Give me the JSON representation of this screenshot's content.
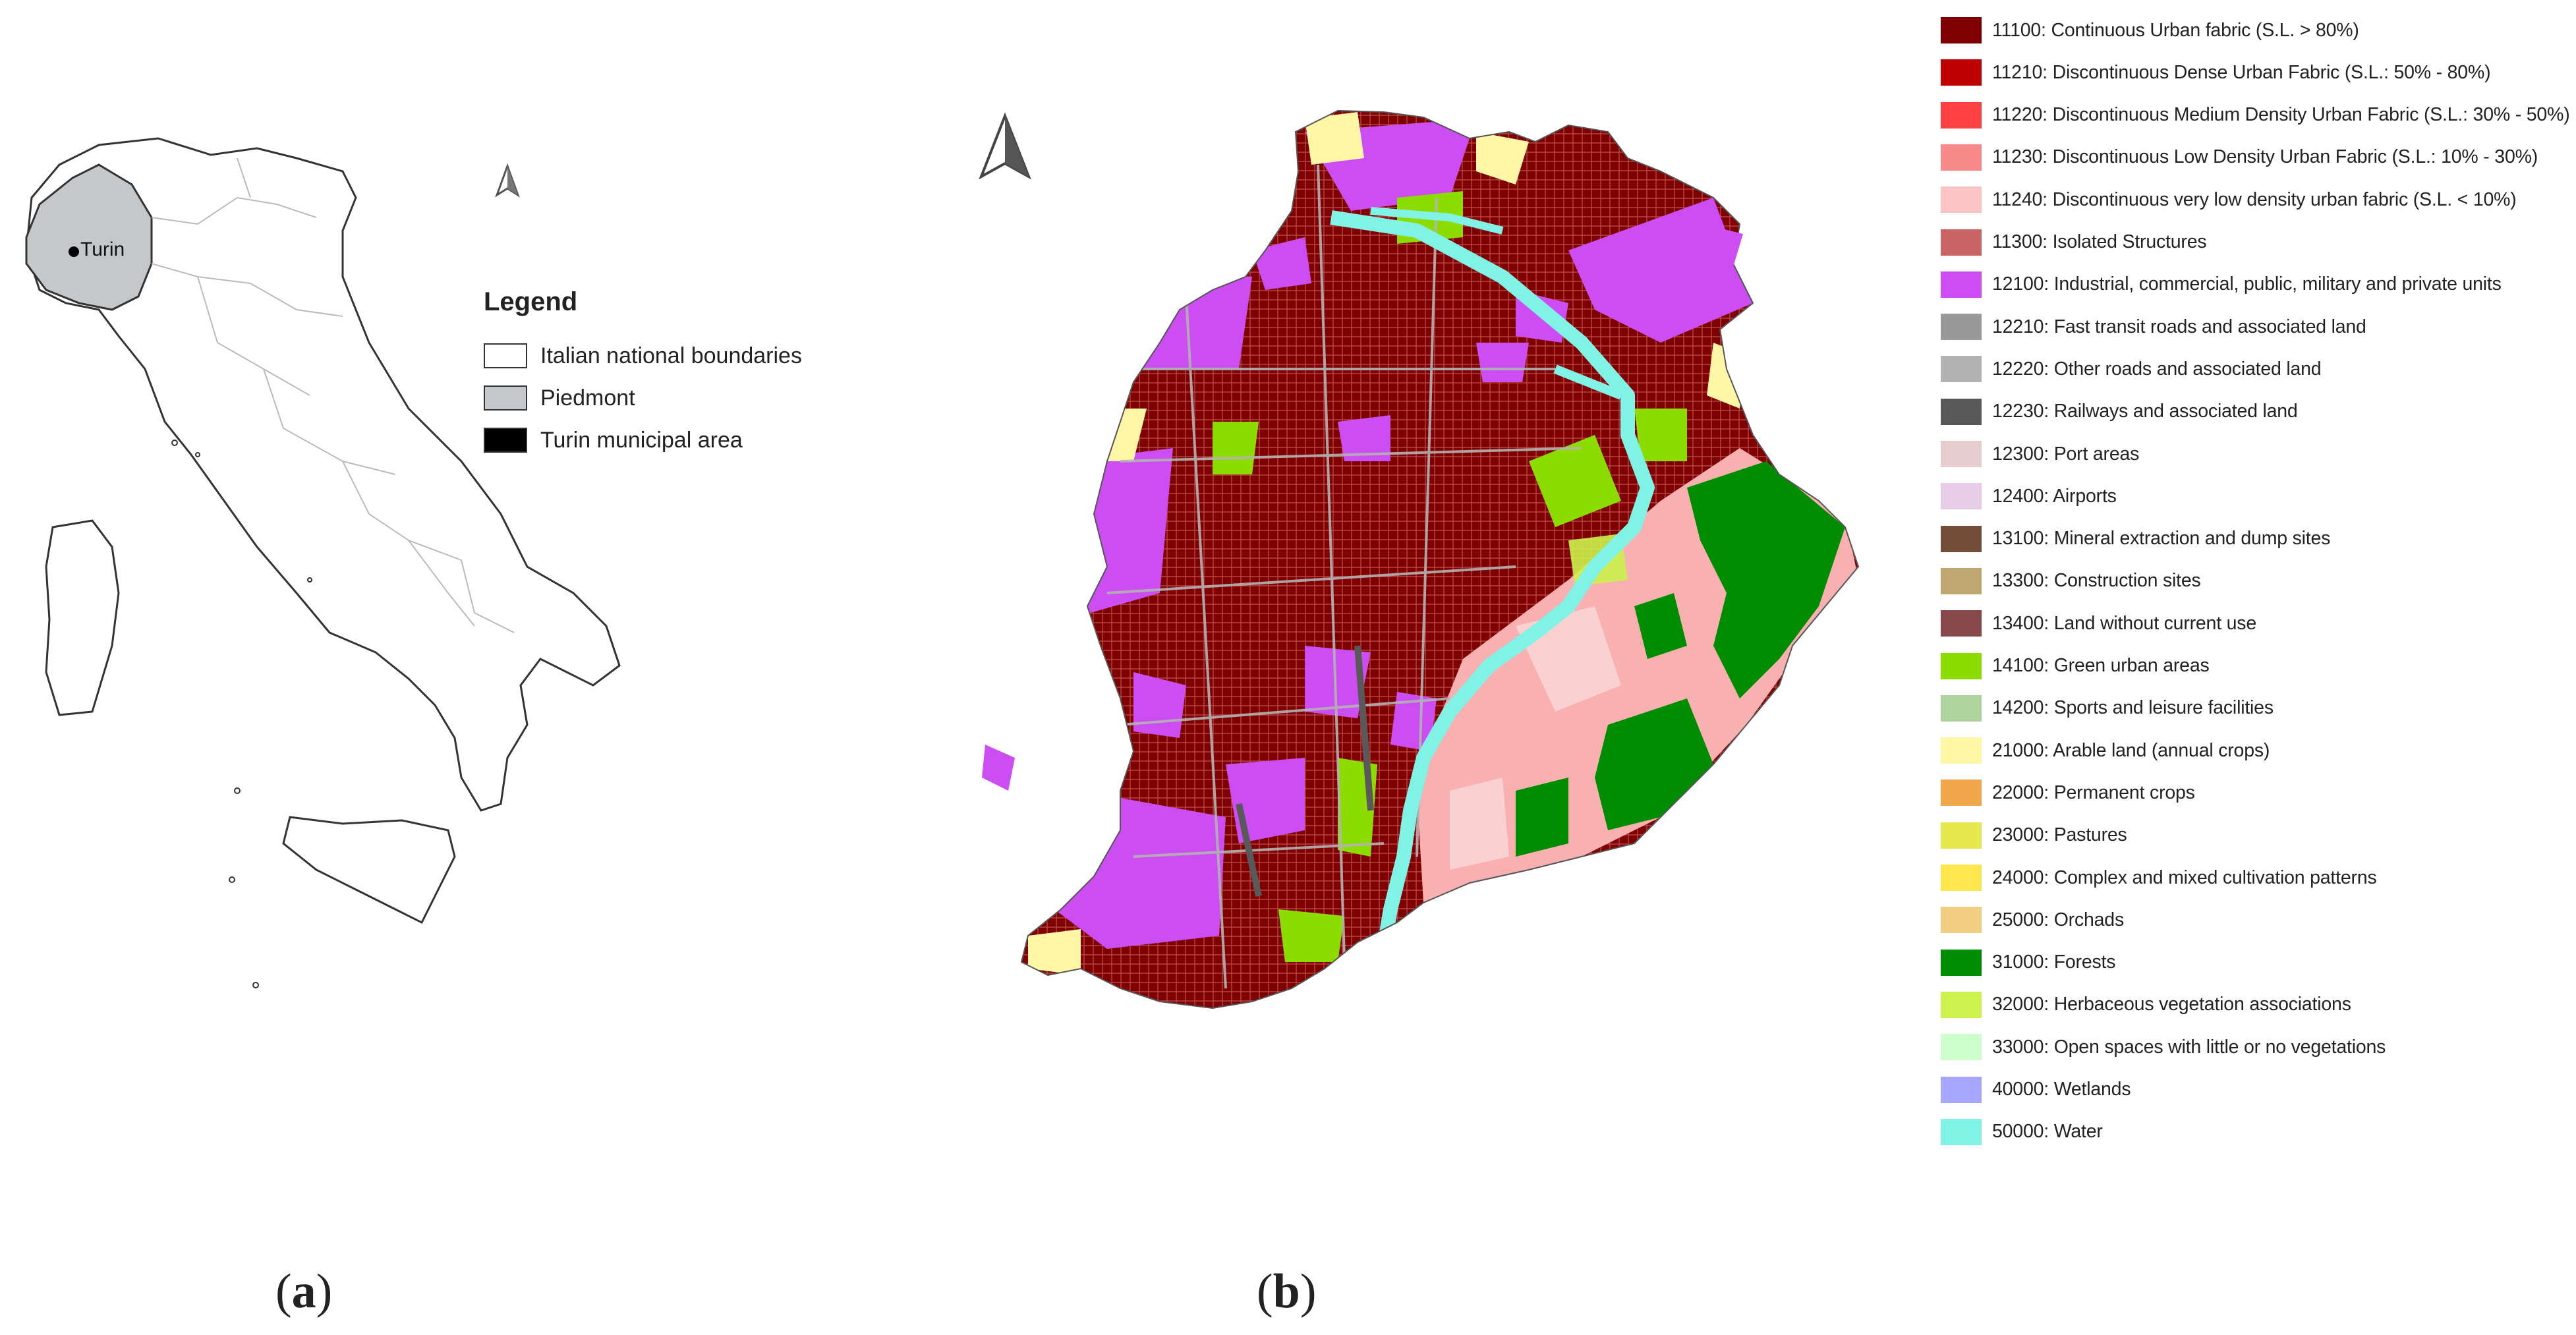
{
  "panel_a": {
    "label": "a",
    "city_label": "Turin",
    "north_arrow_icon": "north-arrow-icon",
    "legend": {
      "title": "Legend",
      "items": [
        {
          "label": "Italian national boundaries",
          "color": "#ffffff"
        },
        {
          "label": "Piedmont",
          "color": "#c4c8cb"
        },
        {
          "label": "Turin municipal area",
          "color": "#000000"
        }
      ]
    }
  },
  "panel_b": {
    "label": "b",
    "north_arrow_icon": "north-arrow-icon",
    "legend": {
      "items": [
        {
          "label": "11100: Continuous Urban fabric (S.L. > 80%)",
          "color": "#7f0000"
        },
        {
          "label": "11210: Discontinuous Dense Urban Fabric (S.L.: 50% - 80%)",
          "color": "#bf0000"
        },
        {
          "label": "11220: Discontinuous Medium Density Urban Fabric (S.L.: 30% - 50%)",
          "color": "#ff4040"
        },
        {
          "label": "11230: Discontinuous Low Density Urban Fabric (S.L.: 10% - 30%)",
          "color": "#f88a8a"
        },
        {
          "label": "11240: Discontinuous very low density urban fabric (S.L. < 10%)",
          "color": "#fbc3c3"
        },
        {
          "label": "11300: Isolated Structures",
          "color": "#c96464"
        },
        {
          "label": "12100: Industrial, commercial, public, military and private units",
          "color": "#cc4df2"
        },
        {
          "label": "12210: Fast transit roads and associated land",
          "color": "#999999"
        },
        {
          "label": "12220: Other roads and associated land",
          "color": "#b3b3b3"
        },
        {
          "label": "12230: Railways and associated land",
          "color": "#595959"
        },
        {
          "label": "12300: Port areas",
          "color": "#e6cccc"
        },
        {
          "label": "12400: Airports",
          "color": "#e6cce6"
        },
        {
          "label": "13100: Mineral extraction and dump sites",
          "color": "#734d37"
        },
        {
          "label": "13300: Construction sites",
          "color": "#bfa770"
        },
        {
          "label": "13400: Land without current use",
          "color": "#874949"
        },
        {
          "label": "14100: Green urban areas",
          "color": "#8cdc00"
        },
        {
          "label": "14200: Sports and leisure facilities",
          "color": "#afd39c"
        },
        {
          "label": "21000: Arable land (annual crops)",
          "color": "#fff7a6"
        },
        {
          "label": "22000: Permanent crops",
          "color": "#f2a64d"
        },
        {
          "label": "23000: Pastures",
          "color": "#e6e64d"
        },
        {
          "label": "24000: Complex and mixed cultivation patterns",
          "color": "#ffe64d"
        },
        {
          "label": "25000: Orchads",
          "color": "#f2cc80"
        },
        {
          "label": "31000: Forests",
          "color": "#008c00"
        },
        {
          "label": "32000: Herbaceous vegetation associations",
          "color": "#ccf24d"
        },
        {
          "label": "33000: Open spaces with little or no vegetations",
          "color": "#ccffcc"
        },
        {
          "label": "40000: Wetlands",
          "color": "#a6a6ff"
        },
        {
          "label": "50000: Water",
          "color": "#80f2e6"
        }
      ]
    }
  }
}
